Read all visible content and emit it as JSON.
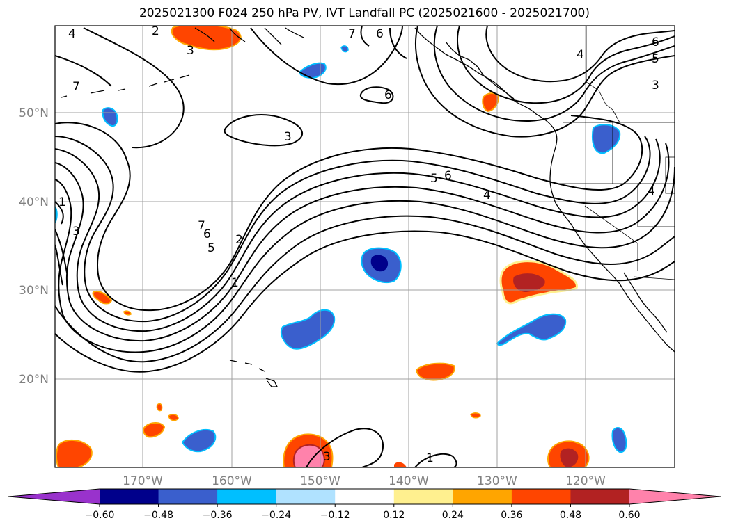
{
  "title": "2025021300 F024 250 hPa PV, IVT Landfall PC (2025021600 - 2025021700)",
  "lat_ticks": [
    {
      "label": "50°N",
      "value": 50
    },
    {
      "label": "40°N",
      "value": 40
    },
    {
      "label": "30°N",
      "value": 30
    },
    {
      "label": "20°N",
      "value": 20
    }
  ],
  "lon_ticks": [
    {
      "label": "170°W",
      "value": -170
    },
    {
      "label": "160°W",
      "value": -160
    },
    {
      "label": "150°W",
      "value": -150
    },
    {
      "label": "140°W",
      "value": -140
    },
    {
      "label": "130°W",
      "value": -130
    },
    {
      "label": "120°W",
      "value": -120
    }
  ],
  "colorbar": {
    "levels": [
      "−0.60",
      "−0.48",
      "−0.36",
      "−0.24",
      "−0.12",
      "0.12",
      "0.24",
      "0.36",
      "0.48",
      "0.60"
    ],
    "colors": [
      "#9932cc",
      "#00008b",
      "#3a5fcd",
      "#00bfff",
      "#b0e2ff",
      "#ffffff",
      "#fff08f",
      "#ffa500",
      "#ff4500",
      "#b22222",
      "#ff82ab"
    ]
  },
  "contour_labels": [
    "4",
    "2",
    "3",
    "6",
    "7",
    "7",
    "6",
    "4",
    "6",
    "5",
    "3",
    "3",
    "5",
    "6",
    "4",
    "7",
    "6",
    "5",
    "2",
    "1",
    "3",
    "1",
    "1",
    "4",
    "3"
  ],
  "colors": {
    "contour": "#000000",
    "grid": "#a0a0a0",
    "coast": "#000000"
  }
}
